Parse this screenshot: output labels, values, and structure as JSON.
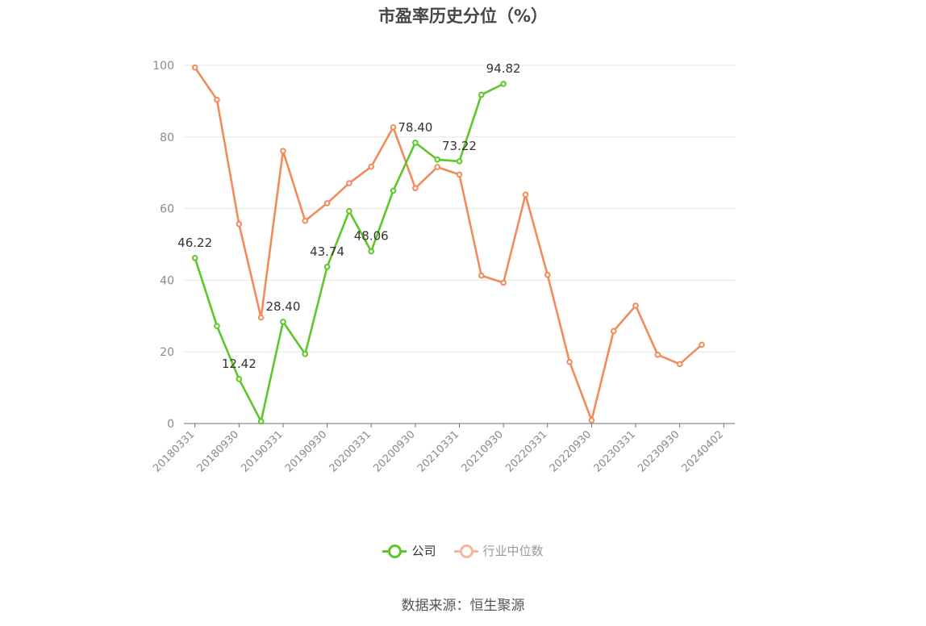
{
  "chart_data": {
    "type": "line",
    "title": "市盈率历史分位（%）",
    "x": [
      "20180331",
      "20180630",
      "20180930",
      "20181231",
      "20190331",
      "20190630",
      "20190930",
      "20191231",
      "20200331",
      "20200630",
      "20200930",
      "20201231",
      "20210331",
      "20210630",
      "20210930",
      "20211231",
      "20220331",
      "20220630",
      "20220930",
      "20221231",
      "20230331",
      "20230630",
      "20230930",
      "20231231",
      "20240402"
    ],
    "x_tick_labels": [
      "20180331",
      "20180930",
      "20190331",
      "20190930",
      "20200331",
      "20200930",
      "20210331",
      "20210930",
      "20220331",
      "20220930",
      "20230331",
      "20230930",
      "20240402"
    ],
    "ylim": [
      0,
      100
    ],
    "y_ticks": [
      0,
      20,
      40,
      60,
      80,
      100
    ],
    "grid": true,
    "legend_position": "bottom",
    "series": [
      {
        "name": "公司",
        "color": "#5dc72a",
        "values": [
          46.22,
          27.2,
          12.42,
          0.6,
          28.4,
          19.4,
          43.74,
          59.3,
          48.06,
          65.0,
          78.4,
          73.7,
          73.22,
          91.8,
          94.82,
          null,
          null,
          null,
          null,
          null,
          null,
          null,
          null,
          null,
          null
        ],
        "labels": {
          "0": "46.22",
          "2": "12.42",
          "4": "28.40",
          "6": "43.74",
          "8": "48.06",
          "10": "78.40",
          "12": "73.22",
          "14": "94.82"
        }
      },
      {
        "name": "行业中位数",
        "color": "#f28b5c",
        "values": [
          99.4,
          90.4,
          55.7,
          29.6,
          76.1,
          56.6,
          61.5,
          67.1,
          71.7,
          82.7,
          65.7,
          71.6,
          69.5,
          41.3,
          39.3,
          63.9,
          41.5,
          17.2,
          0.9,
          25.8,
          32.9,
          19.2,
          16.6,
          22.0,
          null
        ]
      }
    ]
  },
  "legend": {
    "company_label": "公司",
    "industry_label": "行业中位数",
    "company_color": "#5dc72a",
    "industry_color": "#f5b79c"
  },
  "source": "数据来源：恒生聚源"
}
